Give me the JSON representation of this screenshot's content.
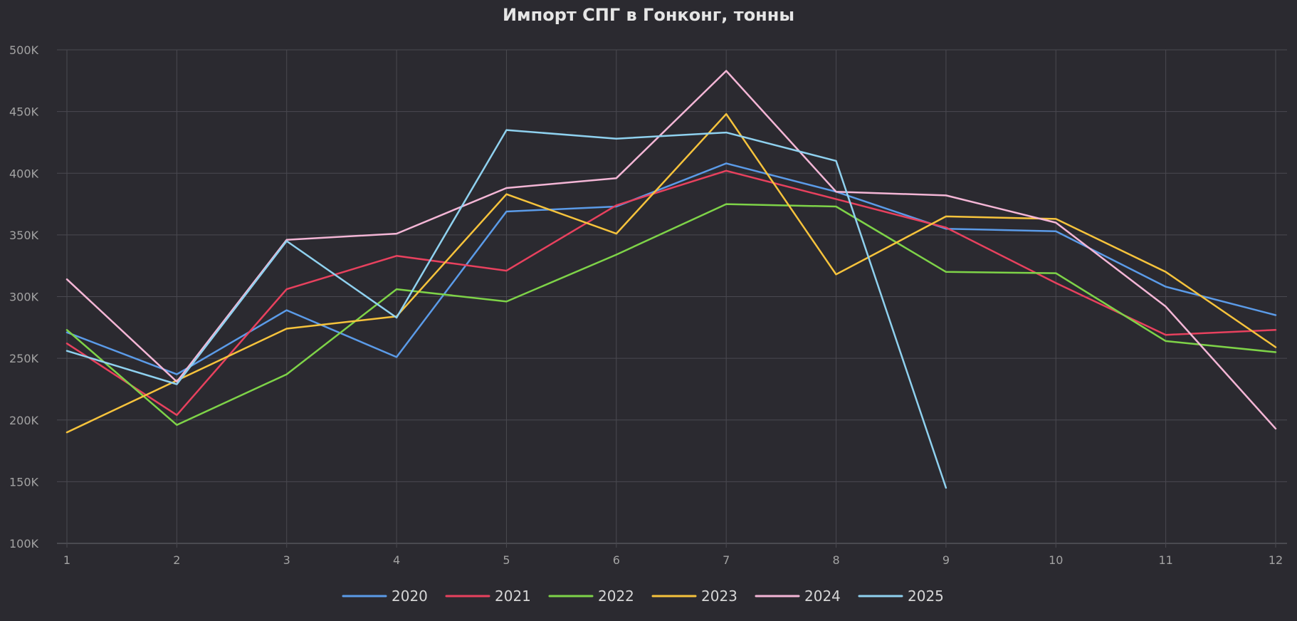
{
  "chart_data": {
    "type": "line",
    "title": "Импорт СПГ в Гонконг, тонны",
    "xlabel": "",
    "ylabel": "",
    "x": [
      1,
      2,
      3,
      4,
      5,
      6,
      7,
      8,
      9,
      10,
      11,
      12
    ],
    "x_tick_labels": [
      "1",
      "2",
      "3",
      "4",
      "5",
      "6",
      "7",
      "8",
      "9",
      "10",
      "11",
      "12"
    ],
    "ylim": [
      100000,
      500000
    ],
    "y_ticks": [
      100000,
      150000,
      200000,
      250000,
      300000,
      350000,
      400000,
      450000,
      500000
    ],
    "y_tick_labels": [
      "100K",
      "150K",
      "200K",
      "250K",
      "300K",
      "350K",
      "400K",
      "450K",
      "500K"
    ],
    "grid": true,
    "legend_position": "bottom-center",
    "series": [
      {
        "name": "2020",
        "color": "#5b9be8",
        "values": [
          271000,
          237000,
          289000,
          251000,
          369000,
          373000,
          408000,
          385000,
          355000,
          353000,
          308000,
          285000
        ]
      },
      {
        "name": "2021",
        "color": "#e8415e",
        "values": [
          262000,
          204000,
          306000,
          333000,
          321000,
          374000,
          402000,
          379000,
          356000,
          311000,
          269000,
          273000
        ]
      },
      {
        "name": "2022",
        "color": "#7ed348",
        "values": [
          273000,
          196000,
          237000,
          306000,
          296000,
          334000,
          375000,
          373000,
          320000,
          319000,
          264000,
          255000
        ]
      },
      {
        "name": "2023",
        "color": "#f6c33c",
        "values": [
          190000,
          232000,
          274000,
          284000,
          383000,
          351000,
          448000,
          318000,
          365000,
          363000,
          320000,
          259000
        ]
      },
      {
        "name": "2024",
        "color": "#f4b6d6",
        "values": [
          314000,
          231000,
          346000,
          351000,
          388000,
          396000,
          483000,
          385000,
          382000,
          360000,
          292000,
          193000
        ]
      },
      {
        "name": "2025",
        "color": "#8fd1ef",
        "values": [
          256000,
          229000,
          345000,
          283000,
          435000,
          428000,
          433000,
          410000,
          145000,
          null,
          null,
          null
        ]
      }
    ]
  }
}
